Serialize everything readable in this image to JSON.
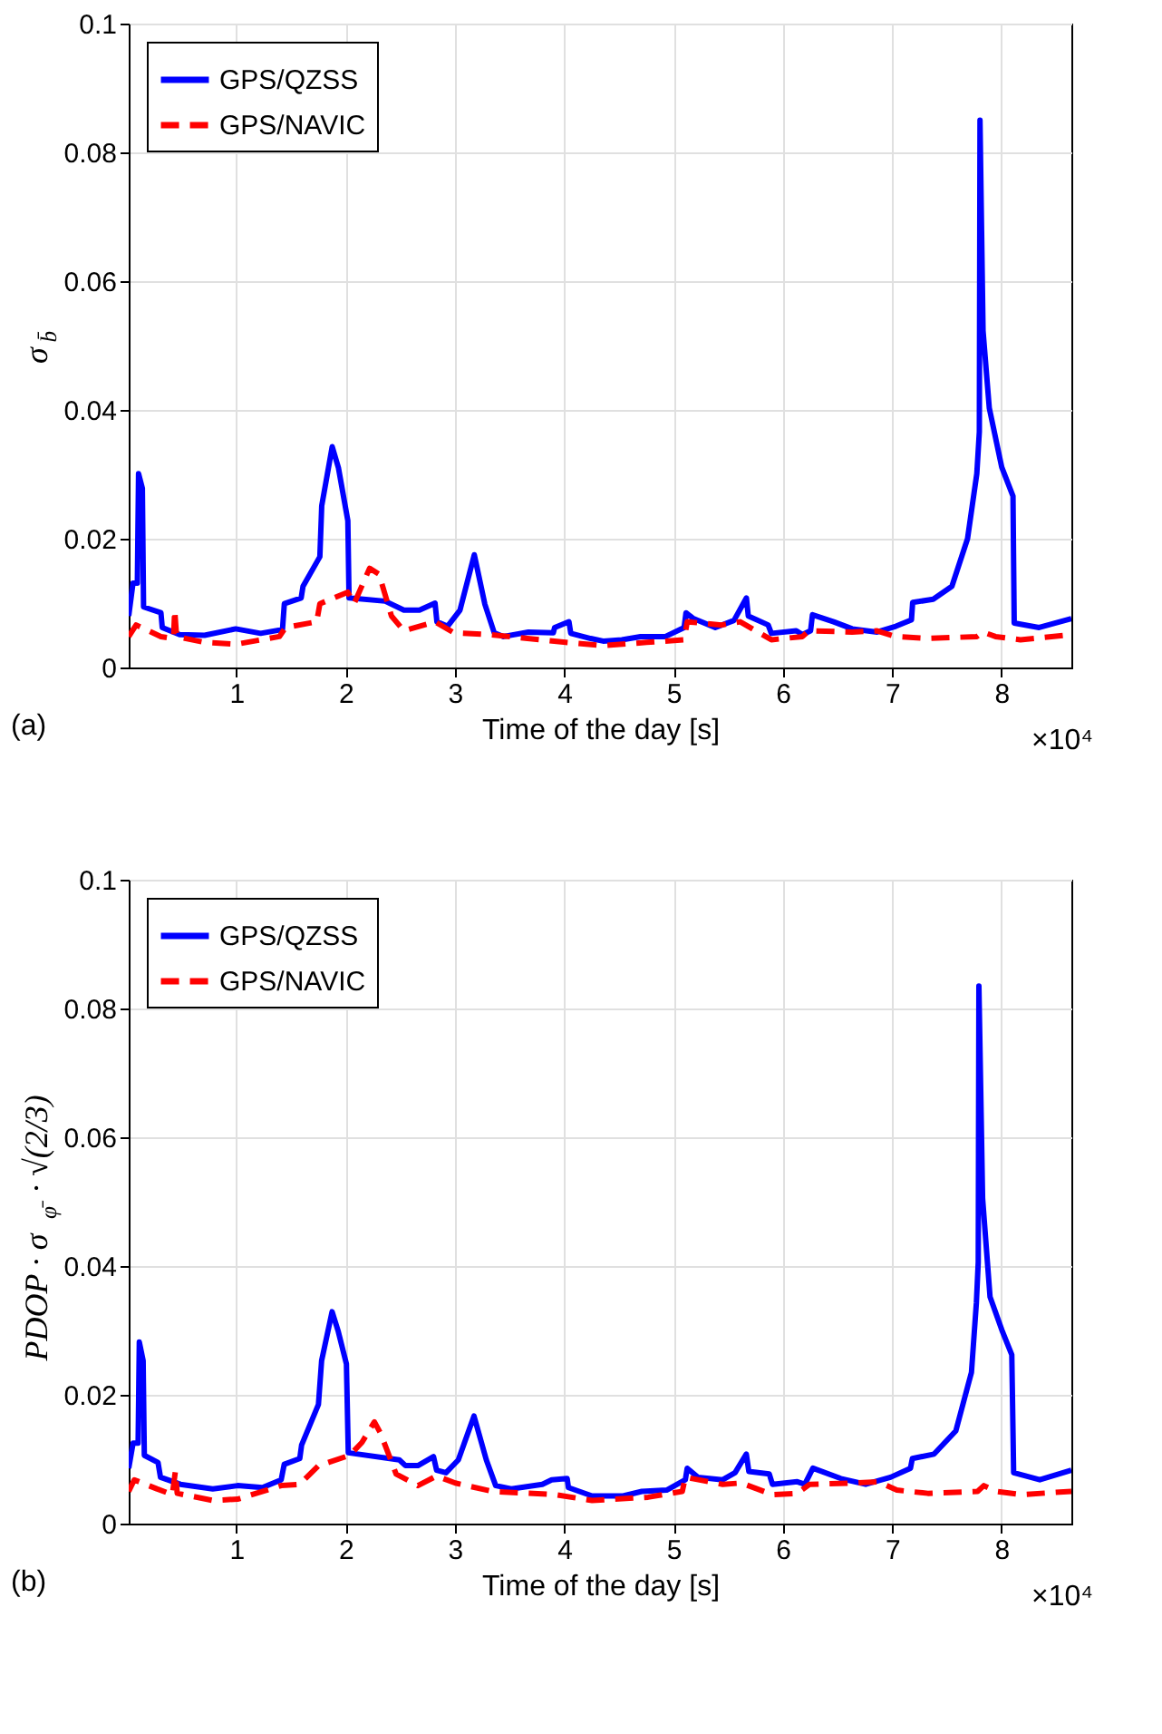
{
  "chart_data": [
    {
      "type": "line",
      "xlabel": "Time of the day [s]",
      "ylabel": "σ$_{b̄}$",
      "annotations": [
        "(a)",
        "×10⁴"
      ],
      "xlim": [
        0.015,
        8.64
      ],
      "xticks": [
        1,
        2,
        3,
        4,
        5,
        6,
        7,
        8
      ],
      "ylim": [
        0,
        0.1
      ],
      "yticks": [
        0,
        0.02,
        0.04,
        0.06,
        0.08,
        0.1
      ],
      "grid": true,
      "legend": "top left",
      "series": [
        {
          "name": "GPS/QZSS",
          "color": "#0000ff",
          "line_style": "solid",
          "x": [
            0.015,
            0.054,
            0.094,
            0.105,
            0.14,
            0.151,
            0.31,
            0.322,
            0.481,
            0.709,
            0.994,
            1.222,
            1.422,
            1.439,
            1.593,
            1.61,
            1.764,
            1.781,
            1.877,
            1.934,
            2.02,
            2.031,
            2.362,
            2.533,
            2.675,
            2.818,
            2.835,
            2.932,
            3.046,
            3.177,
            3.274,
            3.359,
            3.444,
            3.672,
            3.9,
            3.912,
            4.043,
            4.06,
            4.242,
            4.356,
            4.527,
            4.698,
            4.926,
            5.097,
            5.114,
            5.182,
            5.382,
            5.553,
            5.667,
            5.684,
            5.866,
            5.895,
            6.123,
            6.18,
            6.254,
            6.271,
            6.465,
            6.635,
            6.863,
            7.034,
            7.177,
            7.188,
            7.376,
            7.547,
            7.69,
            7.775,
            7.798,
            7.804,
            7.832,
            7.889,
            8.003,
            8.106,
            8.117,
            8.345,
            8.64
          ],
          "values": [
            0.008,
            0.0131,
            0.0131,
            0.0301,
            0.0278,
            0.0094,
            0.0085,
            0.0062,
            0.0051,
            0.005,
            0.006,
            0.0053,
            0.0059,
            0.0099,
            0.0108,
            0.0126,
            0.0172,
            0.0251,
            0.0343,
            0.031,
            0.0228,
            0.0108,
            0.0103,
            0.0089,
            0.0089,
            0.01,
            0.0071,
            0.0064,
            0.0089,
            0.0175,
            0.0098,
            0.0054,
            0.0048,
            0.0055,
            0.0054,
            0.0062,
            0.0071,
            0.0053,
            0.0045,
            0.0041,
            0.0043,
            0.0048,
            0.0048,
            0.0062,
            0.0085,
            0.0076,
            0.0062,
            0.0073,
            0.0108,
            0.008,
            0.0066,
            0.0053,
            0.0057,
            0.0051,
            0.0057,
            0.0082,
            0.0071,
            0.006,
            0.0055,
            0.0064,
            0.0074,
            0.0101,
            0.0106,
            0.0126,
            0.02,
            0.0301,
            0.0366,
            0.085,
            0.0523,
            0.0403,
            0.0311,
            0.0266,
            0.0069,
            0.0062,
            0.0076
          ]
        },
        {
          "name": "GPS/NAVIC",
          "color": "#ff0000",
          "line_style": "dashed",
          "x": [
            0.015,
            0.083,
            0.31,
            0.425,
            0.436,
            0.453,
            0.709,
            0.994,
            1.393,
            1.45,
            1.735,
            1.764,
            2.02,
            2.077,
            2.219,
            2.305,
            2.419,
            2.533,
            2.818,
            2.989,
            3.33,
            3.786,
            4.014,
            4.356,
            4.755,
            5.097,
            5.125,
            5.439,
            5.61,
            5.895,
            6.18,
            6.237,
            6.635,
            6.863,
            7.034,
            7.319,
            7.775,
            7.832,
            7.946,
            8.174,
            8.64
          ],
          "values": [
            0.0048,
            0.0066,
            0.0048,
            0.0045,
            0.0089,
            0.0048,
            0.0039,
            0.0036,
            0.0048,
            0.0062,
            0.0071,
            0.0099,
            0.0117,
            0.0099,
            0.0154,
            0.0145,
            0.008,
            0.0057,
            0.0071,
            0.0054,
            0.0051,
            0.0043,
            0.0039,
            0.0034,
            0.0039,
            0.0043,
            0.0071,
            0.0066,
            0.0071,
            0.0043,
            0.0048,
            0.0057,
            0.0055,
            0.0057,
            0.0048,
            0.0045,
            0.0048,
            0.0055,
            0.0048,
            0.0043,
            0.0051
          ]
        }
      ]
    },
    {
      "type": "line",
      "xlabel": "Time of the day [s]",
      "ylabel": "PDOP · σ$_{φ̄}$ · √(2/3)",
      "annotations": [
        "(b)",
        "×10⁴"
      ],
      "xlim": [
        0.015,
        8.64
      ],
      "xticks": [
        1,
        2,
        3,
        4,
        5,
        6,
        7,
        8
      ],
      "ylim": [
        0,
        0.1
      ],
      "yticks": [
        0,
        0.02,
        0.04,
        0.06,
        0.08,
        0.1
      ],
      "grid": true,
      "legend": "top left",
      "series": [
        {
          "name": "GPS/QZSS",
          "color": "#0000ff",
          "line_style": "solid",
          "x": [
            0.015,
            0.055,
            0.101,
            0.112,
            0.147,
            0.158,
            0.283,
            0.306,
            0.488,
            0.784,
            1.011,
            1.239,
            1.41,
            1.438,
            1.58,
            1.597,
            1.751,
            1.78,
            1.876,
            1.933,
            2.007,
            2.024,
            2.491,
            2.548,
            2.661,
            2.804,
            2.832,
            2.918,
            3.031,
            3.174,
            3.287,
            3.373,
            3.515,
            3.799,
            3.885,
            4.027,
            4.038,
            4.255,
            4.539,
            4.71,
            4.937,
            5.108,
            5.125,
            5.222,
            5.45,
            5.563,
            5.666,
            5.689,
            5.876,
            5.905,
            6.132,
            6.201,
            6.275,
            6.531,
            6.758,
            6.986,
            7.168,
            7.185,
            7.384,
            7.583,
            7.726,
            7.771,
            7.788,
            7.794,
            7.828,
            7.896,
            8.01,
            8.095,
            8.112,
            8.351,
            8.64
          ],
          "values": [
            0.0086,
            0.0125,
            0.0125,
            0.0282,
            0.0253,
            0.0106,
            0.0095,
            0.0072,
            0.0061,
            0.0054,
            0.0059,
            0.0056,
            0.0068,
            0.0092,
            0.0101,
            0.0122,
            0.0185,
            0.0253,
            0.0329,
            0.0298,
            0.0248,
            0.011,
            0.0099,
            0.009,
            0.009,
            0.0104,
            0.0083,
            0.0079,
            0.0099,
            0.0167,
            0.0099,
            0.0059,
            0.0054,
            0.0061,
            0.0068,
            0.007,
            0.0056,
            0.0043,
            0.0043,
            0.005,
            0.0052,
            0.0068,
            0.0086,
            0.0072,
            0.0068,
            0.0079,
            0.0108,
            0.0081,
            0.0077,
            0.0061,
            0.0065,
            0.0061,
            0.0086,
            0.007,
            0.0061,
            0.0072,
            0.0086,
            0.0101,
            0.0108,
            0.0144,
            0.0235,
            0.0343,
            0.0406,
            0.0835,
            0.0505,
            0.0352,
            0.0298,
            0.0262,
            0.0079,
            0.0068,
            0.0083
          ]
        },
        {
          "name": "GPS/NAVIC",
          "color": "#ff0000",
          "line_style": "dashed",
          "x": [
            0.015,
            0.066,
            0.272,
            0.414,
            0.442,
            0.459,
            0.784,
            1.011,
            1.41,
            1.58,
            1.751,
            2.036,
            2.149,
            2.263,
            2.32,
            2.462,
            2.661,
            2.832,
            3.003,
            3.344,
            3.913,
            4.255,
            4.767,
            5.08,
            5.108,
            5.45,
            5.62,
            5.905,
            6.132,
            6.246,
            6.644,
            6.872,
            7.043,
            7.327,
            7.782,
            7.839,
            7.953,
            8.181,
            8.64
          ],
          "values": [
            0.005,
            0.0068,
            0.0054,
            0.0045,
            0.0081,
            0.0047,
            0.0036,
            0.0038,
            0.0059,
            0.0061,
            0.009,
            0.0106,
            0.0126,
            0.0158,
            0.014,
            0.0077,
            0.0059,
            0.0074,
            0.0063,
            0.005,
            0.0045,
            0.0036,
            0.0041,
            0.005,
            0.0072,
            0.0061,
            0.0063,
            0.0045,
            0.0047,
            0.0061,
            0.0063,
            0.0065,
            0.0052,
            0.0047,
            0.005,
            0.0059,
            0.005,
            0.0045,
            0.005
          ]
        }
      ]
    }
  ]
}
